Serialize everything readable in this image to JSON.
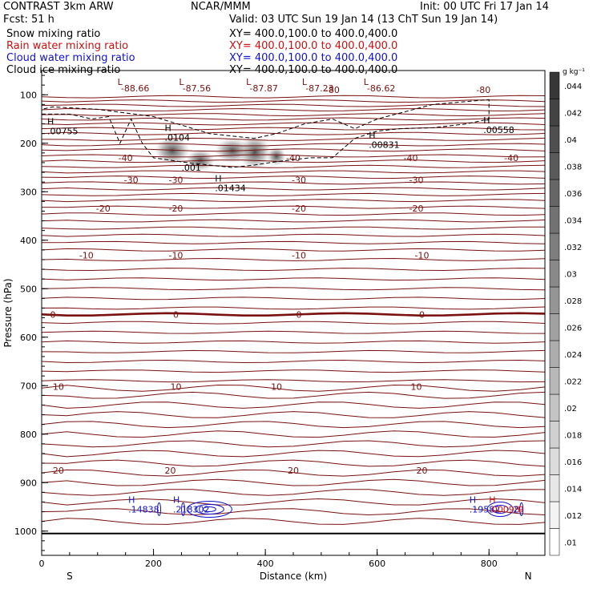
{
  "header": {
    "model": "CONTRAST  3km ARW",
    "org": "NCAR/MMM",
    "init": "Init: 00 UTC Fri 17 Jan 14",
    "fcst": "Fcst:    51 h",
    "valid": "Valid: 03 UTC Sun 19 Jan 14 (13 ChT Sun 19 Jan 14)"
  },
  "legend": [
    {
      "label": "Snow mixing ratio",
      "xy": "XY= 400.0,100.0 to 400.0,400.0",
      "color": "#000000"
    },
    {
      "label": "Rain water mixing ratio",
      "xy": "XY= 400.0,100.0 to 400.0,400.0",
      "color": "#cc1111"
    },
    {
      "label": "Cloud water mixing ratio",
      "xy": "XY= 400.0,100.0 to 400.0,400.0",
      "color": "#1111cc"
    },
    {
      "label": "Cloud ice mixing ratio",
      "xy": "XY= 400.0,100.0 to 400.0,400.0",
      "color": "#000000"
    }
  ],
  "chart_data": {
    "type": "heatmap",
    "xlabel": "Distance (km)",
    "ylabel": "Pressure (hPa)",
    "xlim": [
      0,
      900
    ],
    "ylim": [
      1050,
      50
    ],
    "x_ticks": [
      0,
      200,
      400,
      600,
      800
    ],
    "y_ticks": [
      100,
      200,
      300,
      400,
      500,
      600,
      700,
      800,
      900,
      1000
    ],
    "x_end_labels": {
      "left": "S",
      "right": "N"
    },
    "colorbar": {
      "unit": "g kg⁻¹",
      "ticks": [
        ".01",
        ".012",
        ".014",
        ".016",
        ".018",
        ".02",
        ".022",
        ".024",
        ".026",
        ".028",
        ".03",
        ".032",
        ".034",
        ".036",
        ".038",
        ".04",
        ".042",
        ".044"
      ]
    },
    "temperature_contours": [
      {
        "label": "-80",
        "positions": [
          [
            520,
            90
          ],
          [
            790,
            90
          ]
        ]
      },
      {
        "label": "-40",
        "positions": [
          [
            150,
            230
          ],
          [
            450,
            230
          ],
          [
            660,
            230
          ],
          [
            840,
            230
          ]
        ]
      },
      {
        "label": "-30",
        "positions": [
          [
            160,
            276
          ],
          [
            240,
            276
          ],
          [
            460,
            276
          ],
          [
            670,
            276
          ]
        ]
      },
      {
        "label": "-20",
        "positions": [
          [
            110,
            334
          ],
          [
            240,
            334
          ],
          [
            460,
            334
          ],
          [
            670,
            334
          ]
        ]
      },
      {
        "label": "-10",
        "positions": [
          [
            80,
            431
          ],
          [
            240,
            431
          ],
          [
            460,
            431
          ],
          [
            680,
            431
          ]
        ]
      },
      {
        "label": "0",
        "positions": [
          [
            20,
            553
          ],
          [
            240,
            553
          ],
          [
            460,
            553
          ],
          [
            680,
            553
          ]
        ]
      },
      {
        "label": "10",
        "positions": [
          [
            30,
            702
          ],
          [
            240,
            702
          ],
          [
            420,
            702
          ],
          [
            670,
            702
          ]
        ]
      },
      {
        "label": "20",
        "positions": [
          [
            30,
            875
          ],
          [
            230,
            875
          ],
          [
            450,
            875
          ],
          [
            680,
            875
          ]
        ]
      }
    ],
    "minima": [
      {
        "label": "L",
        "value": "-88.66",
        "x": 150
      },
      {
        "label": "L",
        "value": "-87.56",
        "x": 260
      },
      {
        "label": "L",
        "value": "-87.87",
        "x": 380
      },
      {
        "label": "L",
        "value": "-87.23",
        "x": 480
      },
      {
        "label": "L",
        "value": "-86.62",
        "x": 590
      }
    ],
    "maxima": [
      {
        "label": "H",
        "value": ".00755",
        "x": 10,
        "p": 175,
        "series": "snow"
      },
      {
        "label": "H",
        "value": ".0104",
        "x": 220,
        "p": 188,
        "series": "snow"
      },
      {
        "label": "H",
        "value": ".01434",
        "x": 310,
        "p": 292,
        "series": "snow"
      },
      {
        "label": "H",
        "value": ".00831",
        "x": 585,
        "p": 203,
        "series": "snow"
      },
      {
        "label": "H",
        "value": ".00558",
        "x": 790,
        "p": 172,
        "series": "snow"
      },
      {
        "label": "",
        "value": ".001",
        "x": 250,
        "p": 250,
        "series": "snow"
      },
      {
        "label": "H",
        "value": ".14838",
        "x": 155,
        "p": 955,
        "series": "cloud_water"
      },
      {
        "label": "H",
        "value": ".218302",
        "x": 235,
        "p": 955,
        "series": "cloud_water"
      },
      {
        "label": "H",
        "value": ".19582",
        "x": 765,
        "p": 955,
        "series": "cloud_water"
      },
      {
        "label": "H",
        "value": ".00098",
        "x": 800,
        "p": 955,
        "series": "rain_water"
      },
      {
        "label": "",
        "value": "2",
        "x": 843,
        "p": 955,
        "series": "cloud_water"
      },
      {
        "label": "",
        "value": "9",
        "x": 852,
        "p": 955,
        "series": "rain_water"
      }
    ]
  }
}
